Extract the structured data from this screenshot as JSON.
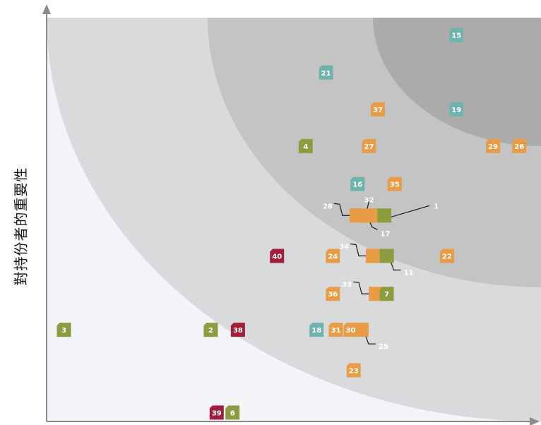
{
  "chart_data": {
    "type": "scatter",
    "title": "",
    "xlabel": "",
    "ylabel": "對持份者的重要性",
    "xlim": [
      0,
      1
    ],
    "ylim": [
      0,
      1
    ],
    "grid": false,
    "colors": {
      "green": "#8a9e3f",
      "orange": "#e89c45",
      "teal": "#6fb3ae",
      "red": "#a31d3d",
      "leader": "#1a1a1a",
      "axis": "#8a8a8a",
      "zone_outer": "#f3f4f7",
      "zone_2": "#d9dadc",
      "zone_3": "#c4c4c4",
      "zone_4": "#ababab"
    },
    "points": [
      {
        "label": "1",
        "x": 0.683,
        "y": 0.51,
        "color": "green",
        "callout": "right"
      },
      {
        "label": "2",
        "x": 0.332,
        "y": 0.227,
        "color": "green"
      },
      {
        "label": "3",
        "x": 0.035,
        "y": 0.227,
        "color": "green"
      },
      {
        "label": "4",
        "x": 0.524,
        "y": 0.682,
        "color": "green"
      },
      {
        "label": "6",
        "x": 0.376,
        "y": 0.022,
        "color": "green"
      },
      {
        "label": "7",
        "x": 0.688,
        "y": 0.316,
        "color": "green"
      },
      {
        "label": "11",
        "x": 0.688,
        "y": 0.41,
        "color": "green",
        "callout": "bottom-right"
      },
      {
        "label": "15",
        "x": 0.829,
        "y": 0.957,
        "color": "teal"
      },
      {
        "label": "16",
        "x": 0.629,
        "y": 0.588,
        "color": "teal"
      },
      {
        "label": "17",
        "x": 0.655,
        "y": 0.51,
        "color": "orange",
        "callout": "bottom"
      },
      {
        "label": "18",
        "x": 0.546,
        "y": 0.227,
        "color": "teal"
      },
      {
        "label": "19",
        "x": 0.829,
        "y": 0.773,
        "color": "teal"
      },
      {
        "label": "21",
        "x": 0.565,
        "y": 0.864,
        "color": "teal"
      },
      {
        "label": "22",
        "x": 0.81,
        "y": 0.41,
        "color": "orange"
      },
      {
        "label": "23",
        "x": 0.621,
        "y": 0.127,
        "color": "orange"
      },
      {
        "label": "24",
        "x": 0.579,
        "y": 0.41,
        "color": "orange"
      },
      {
        "label": "25",
        "x": 0.637,
        "y": 0.227,
        "color": "orange",
        "callout": "bottom-right"
      },
      {
        "label": "26",
        "x": 0.956,
        "y": 0.682,
        "color": "orange"
      },
      {
        "label": "27",
        "x": 0.652,
        "y": 0.682,
        "color": "orange"
      },
      {
        "label": "28",
        "x": 0.627,
        "y": 0.51,
        "color": "orange",
        "callout": "top-left"
      },
      {
        "label": "29",
        "x": 0.903,
        "y": 0.682,
        "color": "orange"
      },
      {
        "label": "30",
        "x": 0.615,
        "y": 0.227,
        "color": "orange"
      },
      {
        "label": "31",
        "x": 0.585,
        "y": 0.227,
        "color": "orange"
      },
      {
        "label": "32",
        "x": 0.655,
        "y": 0.51,
        "color": "orange",
        "callout": "top"
      },
      {
        "label": "33",
        "x": 0.666,
        "y": 0.316,
        "color": "orange",
        "callout": "top-left"
      },
      {
        "label": "34",
        "x": 0.66,
        "y": 0.41,
        "color": "orange",
        "callout": "top-left"
      },
      {
        "label": "35",
        "x": 0.704,
        "y": 0.588,
        "color": "orange"
      },
      {
        "label": "36",
        "x": 0.579,
        "y": 0.316,
        "color": "orange"
      },
      {
        "label": "37",
        "x": 0.67,
        "y": 0.773,
        "color": "orange"
      },
      {
        "label": "38",
        "x": 0.387,
        "y": 0.227,
        "color": "red"
      },
      {
        "label": "39",
        "x": 0.344,
        "y": 0.022,
        "color": "red"
      },
      {
        "label": "40",
        "x": 0.466,
        "y": 0.41,
        "color": "red"
      }
    ]
  }
}
